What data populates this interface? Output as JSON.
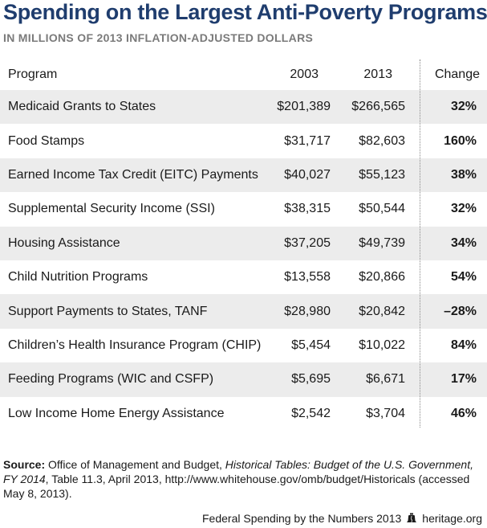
{
  "title": "Spending on the Largest Anti-Poverty Programs",
  "subtitle": "IN MILLIONS OF 2013 INFLATION-ADJUSTED DOLLARS",
  "columns": {
    "program": "Program",
    "y2003": "2003",
    "y2013": "2013",
    "change": "Change"
  },
  "rows": [
    {
      "program": "Medicaid Grants to States",
      "y2003": "$201,389",
      "y2013": "$266,565",
      "change": "32%"
    },
    {
      "program": "Food Stamps",
      "y2003": "$31,717",
      "y2013": "$82,603",
      "change": "160%"
    },
    {
      "program": "Earned Income Tax Credit (EITC) Payments",
      "y2003": "$40,027",
      "y2013": "$55,123",
      "change": "38%"
    },
    {
      "program": "Supplemental Security Income (SSI)",
      "y2003": "$38,315",
      "y2013": "$50,544",
      "change": "32%"
    },
    {
      "program": "Housing Assistance",
      "y2003": "$37,205",
      "y2013": "$49,739",
      "change": "34%"
    },
    {
      "program": "Child Nutrition Programs",
      "y2003": "$13,558",
      "y2013": "$20,866",
      "change": "54%"
    },
    {
      "program": "Support Payments to States, TANF",
      "y2003": "$28,980",
      "y2013": "$20,842",
      "change": "–28%"
    },
    {
      "program": "Children’s Health Insurance Program (CHIP)",
      "y2003": "$5,454",
      "y2013": "$10,022",
      "change": "84%"
    },
    {
      "program": "Feeding Programs (WIC and CSFP)",
      "y2003": "$5,695",
      "y2013": "$6,671",
      "change": "17%"
    },
    {
      "program": "Low Income Home Energy Assistance",
      "y2003": "$2,542",
      "y2013": "$3,704",
      "change": "46%"
    }
  ],
  "source": {
    "label": "Source:",
    "text_before": " Office of Management and Budget, ",
    "italic": "Historical Tables: Budget of the U.S. Government, FY 2014",
    "text_after": ", Table 11.3, April 2013, http://www.whitehouse.gov/omb/budget/Historicals (accessed May 8, 2013)."
  },
  "footer": {
    "left": "Federal Spending by the Numbers 2013",
    "icon": "liberty-bell-icon",
    "right": "heritage.org"
  },
  "colors": {
    "title": "#1f3d6e",
    "subtitle": "#7a7a7a",
    "shaded_row": "#ececec"
  }
}
